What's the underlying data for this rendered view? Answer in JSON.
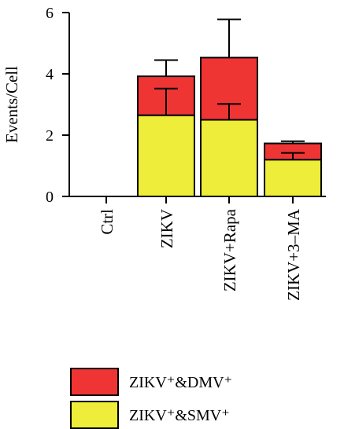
{
  "chart_data": {
    "type": "bar",
    "stacked": true,
    "title": "",
    "xlabel": "",
    "ylabel": "Events/Cell",
    "ylim": [
      0,
      6
    ],
    "yticks": [
      0,
      2,
      4,
      6
    ],
    "categories": [
      "Ctrl",
      "ZIKV",
      "ZIKV+Rapa",
      "ZIKV+3–MA"
    ],
    "series": [
      {
        "name": "ZIKV⁺&SMV⁺",
        "color": "#eded3a",
        "values": [
          0,
          2.65,
          2.5,
          1.2
        ],
        "error_upper": [
          0,
          3.52,
          3.02,
          1.42
        ]
      },
      {
        "name": "ZIKV⁺&DMV⁺",
        "color": "#ef3434",
        "values": [
          0,
          1.27,
          2.03,
          0.53
        ],
        "error_upper": [
          0,
          4.45,
          5.78,
          1.8
        ]
      }
    ],
    "legend": {
      "position": "bottom",
      "entries": [
        {
          "label": "ZIKV⁺&DMV⁺",
          "color": "#ef3434"
        },
        {
          "label": "ZIKV⁺&SMV⁺",
          "color": "#eded3a"
        }
      ]
    },
    "grid": false
  }
}
